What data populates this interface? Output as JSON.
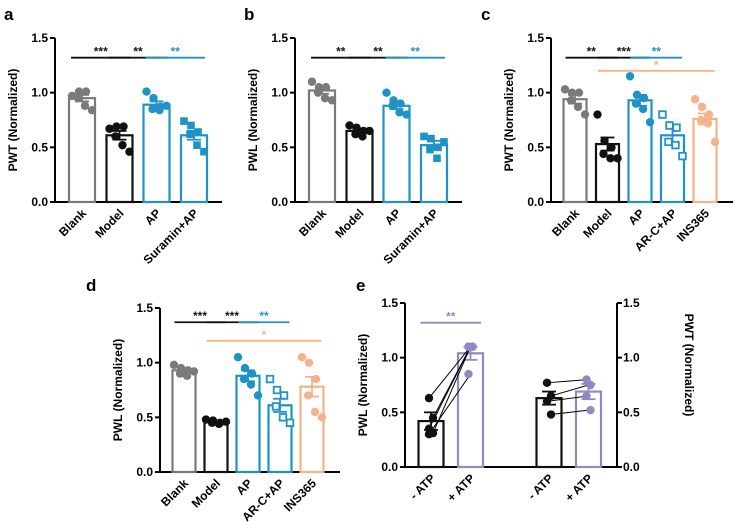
{
  "colors": {
    "gray": "#7a7a7a",
    "black": "#111111",
    "blue": "#1f93c6",
    "orange": "#f4b38a",
    "purple": "#8f8ac2"
  },
  "chart_data": [
    {
      "panel": "a",
      "type": "bar",
      "ylabel": "PWT (Normalized)",
      "ylim": [
        0,
        1.5
      ],
      "yticks": [
        "0.0",
        "0.5",
        "1.0",
        "1.5"
      ],
      "categories": [
        "Blank",
        "Model",
        "AP",
        "Suramin+AP"
      ],
      "bar_colors": [
        "gray",
        "black",
        "blue",
        "blue"
      ],
      "markers": [
        "dot",
        "dot",
        "dot",
        "square"
      ],
      "means": [
        0.95,
        0.61,
        0.89,
        0.61
      ],
      "sem": [
        0.03,
        0.04,
        0.03,
        0.04
      ],
      "points": [
        [
          0.97,
          1.01,
          1.01,
          0.95,
          0.88,
          0.84
        ],
        [
          0.67,
          0.69,
          0.69,
          0.6,
          0.52,
          0.46
        ],
        [
          1.01,
          0.95,
          0.87,
          0.85,
          0.84,
          0.88
        ],
        [
          0.74,
          0.7,
          0.64,
          0.62,
          0.52,
          0.46
        ]
      ],
      "significance": [
        {
          "from": 0,
          "to": 1,
          "label": "***",
          "y": 1.32,
          "color": "black"
        },
        {
          "from": 1,
          "to": 2,
          "label": "**",
          "y": 1.32,
          "color": "black"
        },
        {
          "from": 2,
          "to": 3,
          "label": "**",
          "y": 1.32,
          "color": "blue"
        }
      ]
    },
    {
      "panel": "b",
      "type": "bar",
      "ylabel": "PWL (Normalized)",
      "ylim": [
        0,
        1.5
      ],
      "yticks": [
        "0.0",
        "0.5",
        "1.0",
        "1.5"
      ],
      "categories": [
        "Blank",
        "Model",
        "AP",
        "Suramin+AP"
      ],
      "bar_colors": [
        "gray",
        "black",
        "blue",
        "blue"
      ],
      "markers": [
        "dot",
        "dot",
        "dot",
        "square"
      ],
      "means": [
        1.02,
        0.65,
        0.88,
        0.52
      ],
      "sem": [
        0.03,
        0.02,
        0.03,
        0.04
      ],
      "points": [
        [
          1.1,
          1.05,
          1.05,
          1.0,
          0.95,
          0.93
        ],
        [
          0.7,
          0.68,
          0.65,
          0.62,
          0.6,
          0.65
        ],
        [
          1.0,
          0.93,
          0.9,
          0.88,
          0.82,
          0.8
        ],
        [
          0.6,
          0.58,
          0.5,
          0.48,
          0.4,
          0.55
        ]
      ],
      "significance": [
        {
          "from": 0,
          "to": 1,
          "label": "**",
          "y": 1.32,
          "color": "black"
        },
        {
          "from": 1,
          "to": 2,
          "label": "**",
          "y": 1.32,
          "color": "black"
        },
        {
          "from": 2,
          "to": 3,
          "label": "**",
          "y": 1.32,
          "color": "blue"
        }
      ]
    },
    {
      "panel": "c",
      "type": "bar",
      "ylabel": "PWT (Normalized)",
      "ylim": [
        0,
        1.5
      ],
      "yticks": [
        "0.0",
        "0.5",
        "1.0",
        "1.5"
      ],
      "categories": [
        "Blank",
        "Model",
        "AP",
        "AR-C+AP",
        "INS365"
      ],
      "bar_colors": [
        "gray",
        "black",
        "blue",
        "blue",
        "orange"
      ],
      "markers": [
        "dot",
        "dot",
        "dot",
        "hollow-square",
        "dot"
      ],
      "means": [
        0.94,
        0.53,
        0.93,
        0.61,
        0.76
      ],
      "sem": [
        0.04,
        0.06,
        0.05,
        0.06,
        0.05
      ],
      "points": [
        [
          1.03,
          1.0,
          1.0,
          0.93,
          0.87,
          0.8
        ],
        [
          0.8,
          0.56,
          0.5,
          0.44,
          0.4,
          0.4
        ],
        [
          1.15,
          0.98,
          0.95,
          0.9,
          0.85,
          0.73
        ],
        [
          0.8,
          0.7,
          0.68,
          0.55,
          0.52,
          0.42
        ],
        [
          0.94,
          0.87,
          0.8,
          0.75,
          0.72,
          0.55
        ]
      ],
      "significance": [
        {
          "from": 0,
          "to": 1,
          "label": "**",
          "y": 1.32,
          "color": "black"
        },
        {
          "from": 1,
          "to": 2,
          "label": "***",
          "y": 1.32,
          "color": "black"
        },
        {
          "from": 2,
          "to": 3,
          "label": "**",
          "y": 1.32,
          "color": "blue"
        },
        {
          "from": 1,
          "to": 4,
          "label": "*",
          "y": 1.2,
          "color": "orange"
        }
      ]
    },
    {
      "panel": "d",
      "type": "bar",
      "ylabel": "PWL (Normalized)",
      "ylim": [
        0,
        1.5
      ],
      "yticks": [
        "0.0",
        "0.5",
        "1.0",
        "1.5"
      ],
      "categories": [
        "Blank",
        "Model",
        "AP",
        "AR-C+AP",
        "INS365"
      ],
      "bar_colors": [
        "gray",
        "black",
        "blue",
        "blue",
        "orange"
      ],
      "markers": [
        "dot",
        "dot",
        "dot",
        "hollow-square",
        "dot"
      ],
      "means": [
        0.93,
        0.46,
        0.88,
        0.61,
        0.78
      ],
      "sem": [
        0.02,
        0.01,
        0.05,
        0.06,
        0.09
      ],
      "points": [
        [
          0.98,
          0.95,
          0.93,
          0.9,
          0.88,
          0.92
        ],
        [
          0.48,
          0.47,
          0.45,
          0.45,
          0.44,
          0.46
        ],
        [
          1.05,
          0.95,
          0.9,
          0.85,
          0.8,
          0.7
        ],
        [
          0.85,
          0.75,
          0.7,
          0.6,
          0.5,
          0.45
        ],
        [
          1.05,
          1.0,
          0.85,
          0.7,
          0.55,
          0.5
        ]
      ],
      "significance": [
        {
          "from": 0,
          "to": 1,
          "label": "***",
          "y": 1.37,
          "color": "black"
        },
        {
          "from": 1,
          "to": 2,
          "label": "***",
          "y": 1.37,
          "color": "black"
        },
        {
          "from": 2,
          "to": 3,
          "label": "**",
          "y": 1.37,
          "color": "blue"
        },
        {
          "from": 1,
          "to": 4,
          "label": "*",
          "y": 1.2,
          "color": "orange"
        }
      ]
    },
    {
      "panel": "e",
      "type": "bar",
      "ylabel": "PWL (Normalized)",
      "ylabel_right": "PWT (Normalized)",
      "ylim": [
        0,
        1.5
      ],
      "yticks": [
        "0.0",
        "0.5",
        "1.0",
        "1.5"
      ],
      "categories": [
        "- ATP",
        "+ ATP",
        "- ATP",
        "+ ATP"
      ],
      "bar_colors": [
        "black",
        "purple",
        "black",
        "purple"
      ],
      "markers": [
        "dot",
        "dot",
        "dot",
        "dot"
      ],
      "means": [
        0.42,
        1.04,
        0.63,
        0.69
      ],
      "sem": [
        0.08,
        0.06,
        0.06,
        0.07
      ],
      "points": [
        [
          0.63,
          0.45,
          0.35,
          0.31,
          0.3
        ],
        [
          1.1,
          1.1,
          1.1,
          1.1,
          0.85
        ],
        [
          0.77,
          0.65,
          0.6,
          0.48
        ],
        [
          0.8,
          0.75,
          0.65,
          0.52
        ]
      ],
      "paired": [
        [
          0,
          1
        ],
        [
          2,
          3
        ]
      ],
      "significance": [
        {
          "from": 0,
          "to": 1,
          "label": "**",
          "y": 1.32,
          "color": "purple"
        }
      ]
    }
  ]
}
